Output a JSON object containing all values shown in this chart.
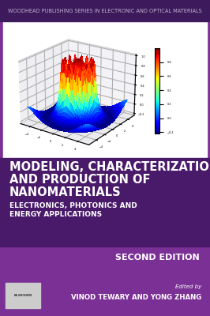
{
  "bg_color": "#7b3095",
  "header_bg": "#3d1a5c",
  "header_text": "WOODHEAD PUBLISHING SERIES IN ELECTRONIC AND OPTICAL MATERIALS",
  "header_text_color": "#c0b0cc",
  "header_fontsize": 4.8,
  "plot_bg": "#ffffff",
  "title_panel_color": "#4a1a6a",
  "title_line1": "MODELING, CHARACTERIZATION",
  "title_line2": "AND PRODUCTION OF",
  "title_line3": "NANOMATERIALS",
  "subtitle_line1": "ELECTRONICS, PHOTONICS AND",
  "subtitle_line2": "ENERGY APPLICATIONS",
  "edition": "SECOND EDITION",
  "editors_label": "Edited by",
  "editors": "VINOD TEWARY AND YONG ZHANG",
  "title_color": "#ffffff",
  "subtitle_color": "#ffffff",
  "edition_color": "#ffffff",
  "editors_color": "#ffffff",
  "title_fontsize": 10.5,
  "subtitle_fontsize": 6.5,
  "edition_fontsize": 8.0,
  "editors_label_fontsize": 5.0,
  "editors_fontsize": 6.2
}
